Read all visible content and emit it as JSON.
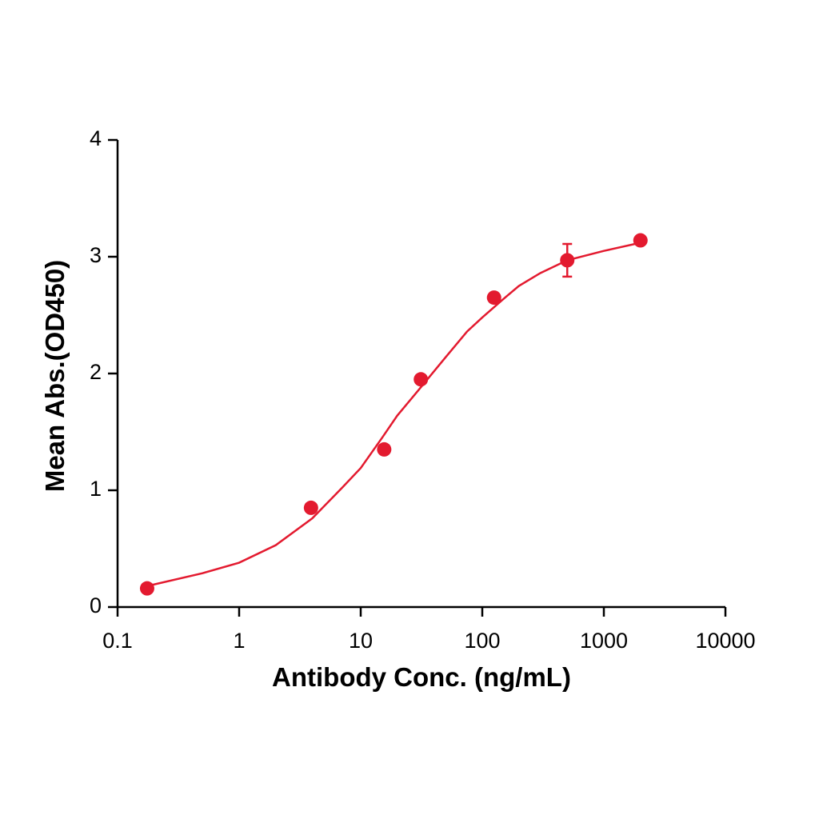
{
  "chart_data": {
    "type": "scatter",
    "x_label": "Antibody Conc. (ng/mL)",
    "y_label": "Mean Abs.(OD450)",
    "x_log": true,
    "xlim": [
      0.1,
      10000
    ],
    "xticks": [
      0.1,
      1,
      10,
      100,
      1000,
      10000
    ],
    "ylim": [
      0,
      4
    ],
    "yticks": [
      0,
      1,
      2,
      3,
      4
    ],
    "grid": false,
    "series": [
      {
        "type": "scatter",
        "color": "#e31a2f",
        "x": [
          0.175,
          3.9,
          15.6,
          31.25,
          125,
          500,
          2000
        ],
        "values": [
          0.16,
          0.85,
          1.35,
          1.95,
          2.65,
          2.97,
          3.14
        ],
        "errors": [
          null,
          null,
          null,
          null,
          null,
          0.14,
          null
        ]
      },
      {
        "type": "line",
        "color": "#e31a2f",
        "x": [
          0.175,
          0.5,
          1,
          2,
          4,
          7,
          10,
          15,
          20,
          30,
          50,
          75,
          100,
          150,
          200,
          300,
          500,
          1000,
          2000
        ],
        "values": [
          0.18,
          0.29,
          0.38,
          0.53,
          0.76,
          1.02,
          1.19,
          1.45,
          1.64,
          1.86,
          2.14,
          2.36,
          2.48,
          2.64,
          2.75,
          2.86,
          2.97,
          3.05,
          3.12
        ]
      }
    ]
  }
}
